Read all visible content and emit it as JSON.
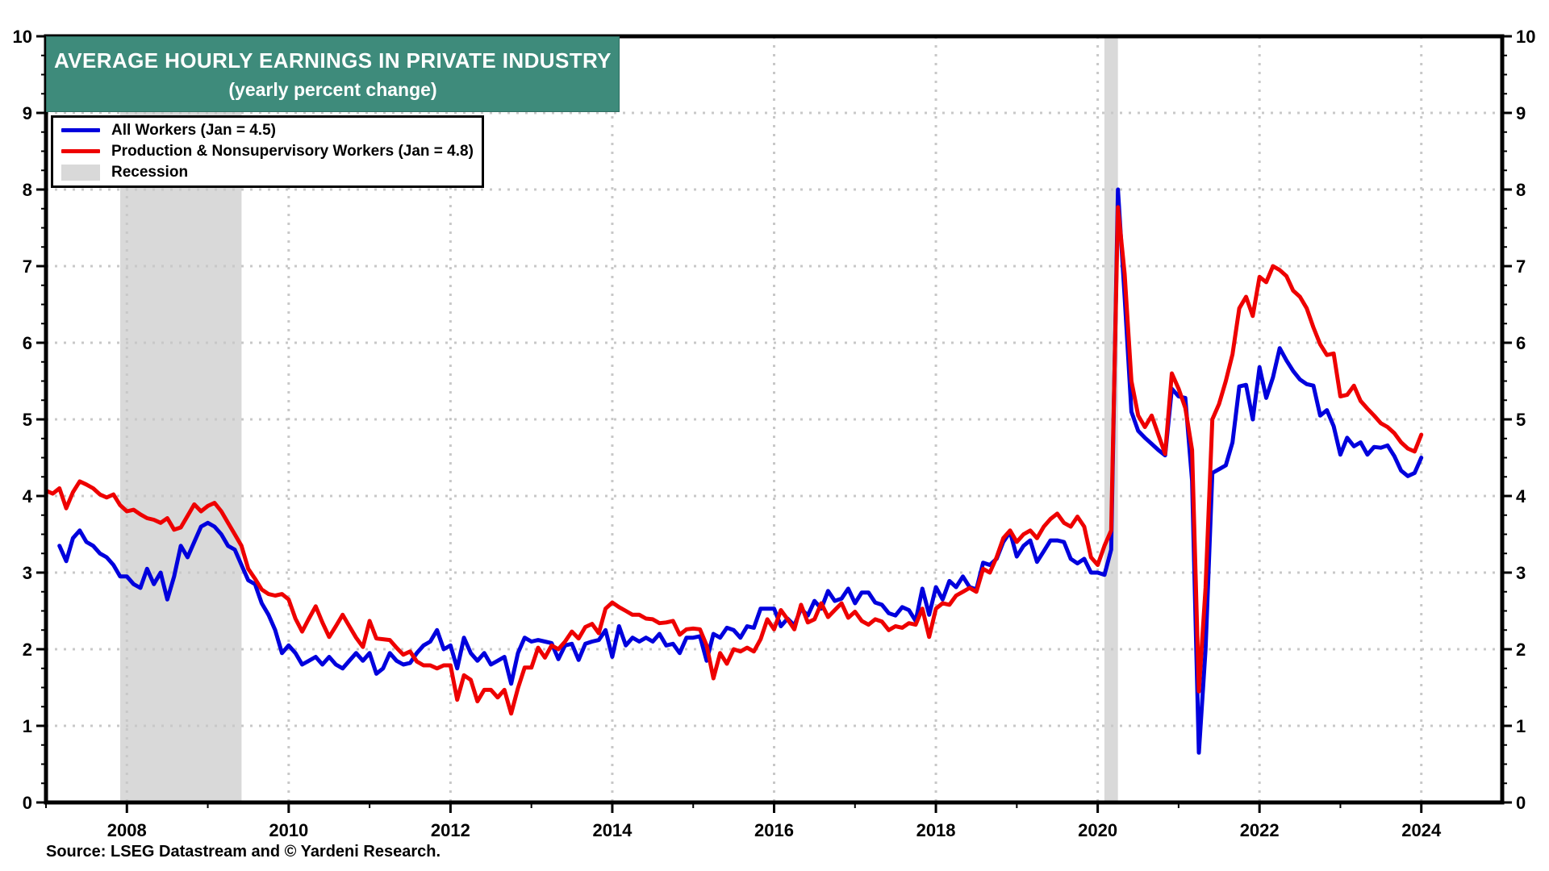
{
  "header": {
    "title": "AVERAGE HOURLY EARNINGS IN PRIVATE INDUSTRY",
    "subtitle": "(yearly percent change)",
    "background_color": "#3E8B7B",
    "text_color": "#ffffff"
  },
  "legend": {
    "items": [
      {
        "id": "all-workers",
        "label": "All Workers (Jan = 4.5)",
        "swatch": "line",
        "color": "#0000dd"
      },
      {
        "id": "production-nonsupervisory-workers",
        "label": "Production & Nonsupervisory Workers (Jan = 4.8)",
        "swatch": "line",
        "color": "#ee0000"
      },
      {
        "id": "recession",
        "label": "Recession",
        "swatch": "patch",
        "color": "#d9d9d9"
      }
    ]
  },
  "footer": {
    "source": "Source: LSEG Datastream and © Yardeni Research."
  },
  "chart_data": {
    "type": "line",
    "title": "AVERAGE HOURLY EARNINGS IN PRIVATE INDUSTRY",
    "subtitle": "(yearly percent change)",
    "grid": {
      "style": "dotted",
      "color": "#c8c8c8",
      "horizontal_at": [
        1,
        2,
        3,
        4,
        5,
        6,
        7,
        8,
        9
      ],
      "vertical_at": [
        2008,
        2010,
        2012,
        2014,
        2016,
        2018,
        2020,
        2022,
        2024
      ]
    },
    "x_axis": {
      "min": 2007.0,
      "max": 2025.0,
      "tick_labels": [
        "2008",
        "2010",
        "2012",
        "2014",
        "2016",
        "2018",
        "2020",
        "2022",
        "2024"
      ],
      "tick_values": [
        2008,
        2010,
        2012,
        2014,
        2016,
        2018,
        2020,
        2022,
        2024
      ],
      "minor_tick_step_years": 1
    },
    "y_axis": {
      "min": 0,
      "max": 10,
      "tick_labels": [
        "0",
        "1",
        "2",
        "3",
        "4",
        "5",
        "6",
        "7",
        "8",
        "9",
        "10"
      ],
      "major_step": 1,
      "minor_step": 0.25,
      "labels_on_both_sides": true
    },
    "recession_bands": [
      {
        "start": 2007.917,
        "end": 2009.417
      },
      {
        "start": 2020.083,
        "end": 2020.25
      }
    ],
    "recession_color": "#d9d9d9",
    "series": [
      {
        "id": "all-workers",
        "name": "All Workers (Jan = 4.5)",
        "color": "#0000dd",
        "start_year": 2007,
        "start_month": 1,
        "monthly_values": [
          null,
          null,
          3.35,
          3.15,
          3.45,
          3.55,
          3.4,
          3.35,
          3.25,
          3.2,
          3.1,
          2.95,
          2.95,
          2.85,
          2.8,
          3.05,
          2.85,
          3.0,
          2.65,
          2.95,
          3.35,
          3.2,
          3.4,
          3.6,
          3.65,
          3.6,
          3.5,
          3.35,
          3.3,
          3.1,
          2.9,
          2.85,
          2.6,
          2.45,
          2.25,
          1.95,
          2.05,
          1.95,
          1.8,
          1.85,
          1.9,
          1.8,
          1.9,
          1.8,
          1.75,
          1.85,
          1.95,
          1.85,
          1.95,
          1.68,
          1.75,
          1.95,
          1.85,
          1.8,
          1.82,
          1.95,
          2.05,
          2.1,
          2.25,
          2.0,
          2.05,
          1.75,
          2.15,
          1.95,
          1.85,
          1.95,
          1.8,
          1.85,
          1.9,
          1.55,
          1.95,
          2.15,
          2.1,
          2.12,
          2.1,
          2.08,
          1.87,
          2.05,
          2.07,
          1.86,
          2.07,
          2.1,
          2.12,
          2.25,
          1.9,
          2.3,
          2.05,
          2.15,
          2.1,
          2.15,
          2.1,
          2.2,
          2.05,
          2.07,
          1.95,
          2.15,
          2.15,
          2.17,
          1.85,
          2.2,
          2.15,
          2.28,
          2.25,
          2.15,
          2.3,
          2.28,
          2.53,
          2.53,
          2.53,
          2.3,
          2.4,
          2.31,
          2.53,
          2.44,
          2.63,
          2.53,
          2.76,
          2.63,
          2.66,
          2.79,
          2.6,
          2.74,
          2.74,
          2.61,
          2.58,
          2.47,
          2.44,
          2.55,
          2.51,
          2.37,
          2.79,
          2.45,
          2.81,
          2.65,
          2.89,
          2.81,
          2.95,
          2.81,
          2.78,
          3.13,
          3.1,
          3.18,
          3.4,
          3.53,
          3.21,
          3.35,
          3.42,
          3.14,
          3.28,
          3.42,
          3.42,
          3.4,
          3.18,
          3.12,
          3.18,
          3.0,
          3.0,
          2.97,
          3.3,
          8.0,
          6.6,
          5.1,
          4.85,
          4.76,
          4.68,
          4.6,
          4.53,
          5.4,
          5.3,
          5.28,
          4.2,
          0.65,
          2.0,
          4.3,
          4.35,
          4.4,
          4.7,
          5.43,
          5.45,
          5.0,
          5.68,
          5.28,
          5.55,
          5.93,
          5.77,
          5.63,
          5.52,
          5.46,
          5.44,
          5.05,
          5.12,
          4.91,
          4.54,
          4.76,
          4.65,
          4.7,
          4.54,
          4.64,
          4.63,
          4.66,
          4.52,
          4.33,
          4.26,
          4.3,
          4.5
        ]
      },
      {
        "id": "production-nonsupervisory-workers",
        "name": "Production & Nonsupervisory Workers (Jan = 4.8)",
        "color": "#ee0000",
        "start_year": 2007,
        "start_month": 1,
        "monthly_values": [
          4.07,
          4.03,
          4.1,
          3.84,
          4.05,
          4.19,
          4.15,
          4.1,
          4.02,
          3.98,
          4.02,
          3.88,
          3.8,
          3.82,
          3.76,
          3.71,
          3.69,
          3.65,
          3.71,
          3.56,
          3.59,
          3.74,
          3.89,
          3.8,
          3.87,
          3.91,
          3.8,
          3.65,
          3.5,
          3.35,
          3.05,
          2.92,
          2.78,
          2.72,
          2.7,
          2.72,
          2.65,
          2.4,
          2.23,
          2.4,
          2.56,
          2.35,
          2.16,
          2.3,
          2.45,
          2.3,
          2.15,
          2.03,
          2.37,
          2.14,
          2.13,
          2.12,
          2.02,
          1.93,
          1.97,
          1.84,
          1.79,
          1.79,
          1.75,
          1.79,
          1.79,
          1.34,
          1.66,
          1.6,
          1.32,
          1.47,
          1.47,
          1.37,
          1.47,
          1.16,
          1.49,
          1.76,
          1.76,
          2.02,
          1.89,
          2.05,
          2.0,
          2.1,
          2.23,
          2.14,
          2.29,
          2.33,
          2.21,
          2.53,
          2.61,
          2.55,
          2.5,
          2.45,
          2.45,
          2.4,
          2.39,
          2.34,
          2.35,
          2.37,
          2.19,
          2.26,
          2.27,
          2.26,
          2.05,
          1.62,
          1.95,
          1.81,
          2.0,
          1.97,
          2.02,
          1.97,
          2.13,
          2.39,
          2.26,
          2.51,
          2.39,
          2.26,
          2.58,
          2.35,
          2.39,
          2.6,
          2.42,
          2.51,
          2.6,
          2.41,
          2.49,
          2.37,
          2.32,
          2.39,
          2.36,
          2.25,
          2.3,
          2.28,
          2.34,
          2.32,
          2.53,
          2.16,
          2.53,
          2.6,
          2.58,
          2.7,
          2.75,
          2.8,
          2.75,
          3.05,
          3.0,
          3.2,
          3.45,
          3.55,
          3.4,
          3.5,
          3.55,
          3.45,
          3.6,
          3.7,
          3.77,
          3.65,
          3.6,
          3.73,
          3.6,
          3.2,
          3.1,
          3.35,
          3.55,
          7.77,
          6.9,
          5.5,
          5.05,
          4.9,
          5.05,
          4.8,
          4.55,
          5.6,
          5.4,
          5.15,
          4.6,
          1.45,
          2.8,
          5.0,
          5.2,
          5.5,
          5.85,
          6.45,
          6.6,
          6.35,
          6.86,
          6.79,
          7.0,
          6.95,
          6.87,
          6.68,
          6.6,
          6.45,
          6.2,
          5.98,
          5.84,
          5.86,
          5.3,
          5.32,
          5.44,
          5.24,
          5.14,
          5.05,
          4.95,
          4.9,
          4.82,
          4.7,
          4.62,
          4.58,
          4.8
        ]
      }
    ],
    "axis_color": "#000000",
    "plot_background": "#ffffff"
  }
}
